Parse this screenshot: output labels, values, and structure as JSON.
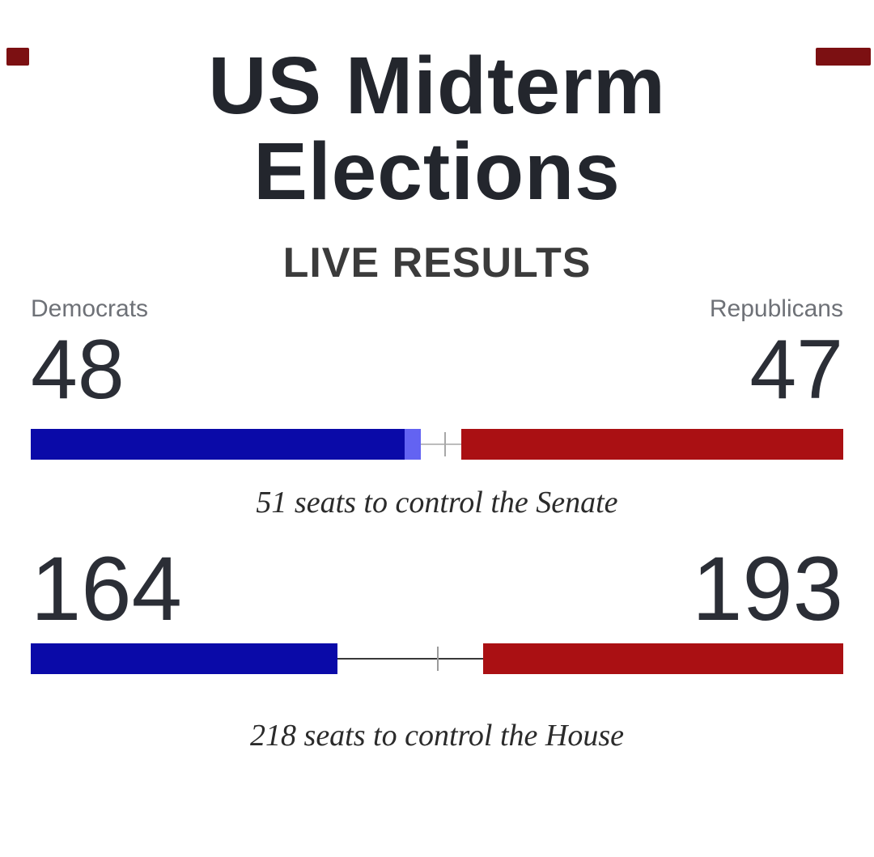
{
  "page": {
    "title_line1": "US Midterm",
    "title_line2": "Elections",
    "subtitle": "LIVE RESULTS"
  },
  "legend": {
    "democrats_label": "Democrats",
    "republicans_label": "Republicans"
  },
  "colors": {
    "ink": "#23262d",
    "label_gray": "#6e7177",
    "democrat_blue": "#0a0aa8",
    "democrat_light_blue": "#6363f2",
    "republican_red": "#aa1013",
    "corner_mark_red": "#7c1012"
  },
  "chart_data": [
    {
      "type": "bar",
      "race": "Senate",
      "democrat_seats": 48,
      "democrat_solid_seats": 46,
      "democrat_light_seats": 2,
      "republican_seats": 47,
      "total_seats": 100,
      "threshold_seats": 51,
      "caption": "51 seats to control the Senate",
      "connector_color": "#bcbcbc",
      "tick_color": "#a8a8a8"
    },
    {
      "type": "bar",
      "race": "House",
      "democrat_seats": 164,
      "democrat_light_seats": 0,
      "republican_seats": 193,
      "total_seats": 435,
      "threshold_seats": 218,
      "caption": "218 seats to control the House",
      "connector_color": "#383838",
      "tick_color": "#9b9b9b"
    }
  ]
}
